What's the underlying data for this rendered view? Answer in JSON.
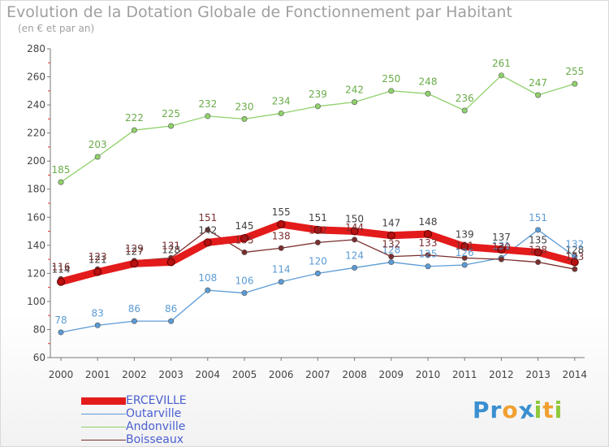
{
  "header": {
    "title": "Evolution de la Dotation Globale de Fonctionnement par Habitant",
    "subtitle": "(en € et par an)"
  },
  "logo": {
    "text": "Proxiti",
    "letters": [
      {
        "ch": "P",
        "color": "#3a8fd0"
      },
      {
        "ch": "r",
        "color": "#3a8fd0"
      },
      {
        "ch": "o",
        "color": "#f0a030"
      },
      {
        "ch": "x",
        "color": "#3a8fd0"
      },
      {
        "ch": "i",
        "color": "#8fc83c"
      },
      {
        "ch": "t",
        "color": "#f0a030"
      },
      {
        "ch": "i",
        "color": "#8fc83c"
      }
    ]
  },
  "chart_data": {
    "type": "line",
    "title": "Evolution de la Dotation Globale de Fonctionnement par Habitant",
    "subtitle": "(en € et par an)",
    "xlabel": "",
    "ylabel": "",
    "x": [
      "2000",
      "2001",
      "2002",
      "2003",
      "2004",
      "2005",
      "2006",
      "2007",
      "2008",
      "2009",
      "2010",
      "2011",
      "2012",
      "2013",
      "2014"
    ],
    "ylim": [
      60,
      280
    ],
    "yticks": [
      60,
      80,
      100,
      120,
      140,
      160,
      180,
      200,
      220,
      240,
      260,
      280
    ],
    "grid": false,
    "legend_position": "bottom-left",
    "series": [
      {
        "name": "ERCEVILLE",
        "color": "#e31b1b",
        "label_color": "#404040",
        "values": [
          114,
          121,
          127,
          128,
          142,
          145,
          155,
          151,
          150,
          147,
          148,
          139,
          137,
          135,
          128
        ]
      },
      {
        "name": "Outarville",
        "color": "#5b9bd5",
        "label_color": "#5b9bd5",
        "values": [
          78,
          83,
          86,
          86,
          108,
          106,
          114,
          120,
          124,
          128,
          125,
          126,
          131,
          151,
          132
        ]
      },
      {
        "name": "Andonville",
        "color": "#8fd16b",
        "label_color": "#6aab48",
        "values": [
          185,
          203,
          222,
          225,
          232,
          230,
          234,
          239,
          242,
          250,
          248,
          236,
          261,
          247,
          255
        ]
      },
      {
        "name": "Boisseaux",
        "color": "#7a2e2e",
        "label_color": "#7a2e2e",
        "values": [
          116,
          123,
          129,
          131,
          151,
          135,
          138,
          142,
          144,
          132,
          133,
          131,
          130,
          128,
          123
        ]
      }
    ]
  }
}
